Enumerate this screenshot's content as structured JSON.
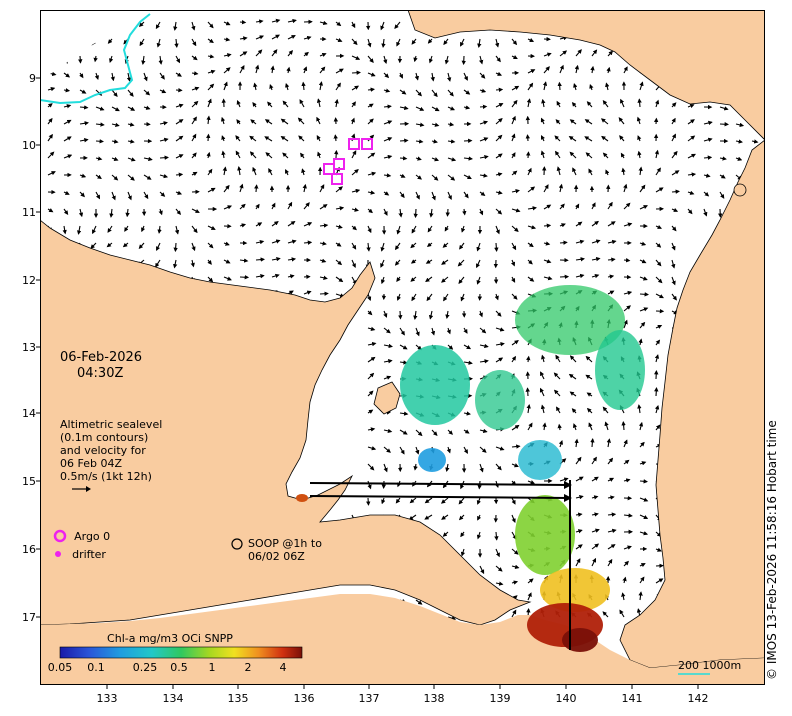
{
  "map": {
    "lon_ticks": [
      "133",
      "134",
      "135",
      "136",
      "137",
      "138",
      "139",
      "140",
      "141",
      "142"
    ],
    "lat_ticks": [
      "9",
      "10",
      "11",
      "12",
      "13",
      "14",
      "15",
      "16",
      "17"
    ],
    "colors": {
      "land": "#f9cca0",
      "sea": "#ffffff",
      "coast": "#000000",
      "contour": "#22dddd",
      "argo": "#ee22ee"
    }
  },
  "annotation": {
    "date": "06-Feb-2026",
    "time": "04:30Z",
    "alt_lines": [
      "Altimetric sealevel",
      "(0.1m contours)",
      "and velocity for",
      "06 Feb 04Z",
      "0.5m/s (1kt 12h)"
    ]
  },
  "legend": {
    "argo_label": "Argo 0",
    "drifter_label": "drifter",
    "soop_line1": "SOOP @1h to",
    "soop_line2": "06/02 06Z"
  },
  "colorbar": {
    "title": "Chl-a mg/m3 OCi SNPP",
    "ticks": [
      "0.05",
      "0.1",
      "0.25",
      "0.5",
      "1",
      "2",
      "4"
    ]
  },
  "scale_label": "200  1000m",
  "credit": "© IMOS 13-Feb-2026 11:58:16 Hobart time"
}
